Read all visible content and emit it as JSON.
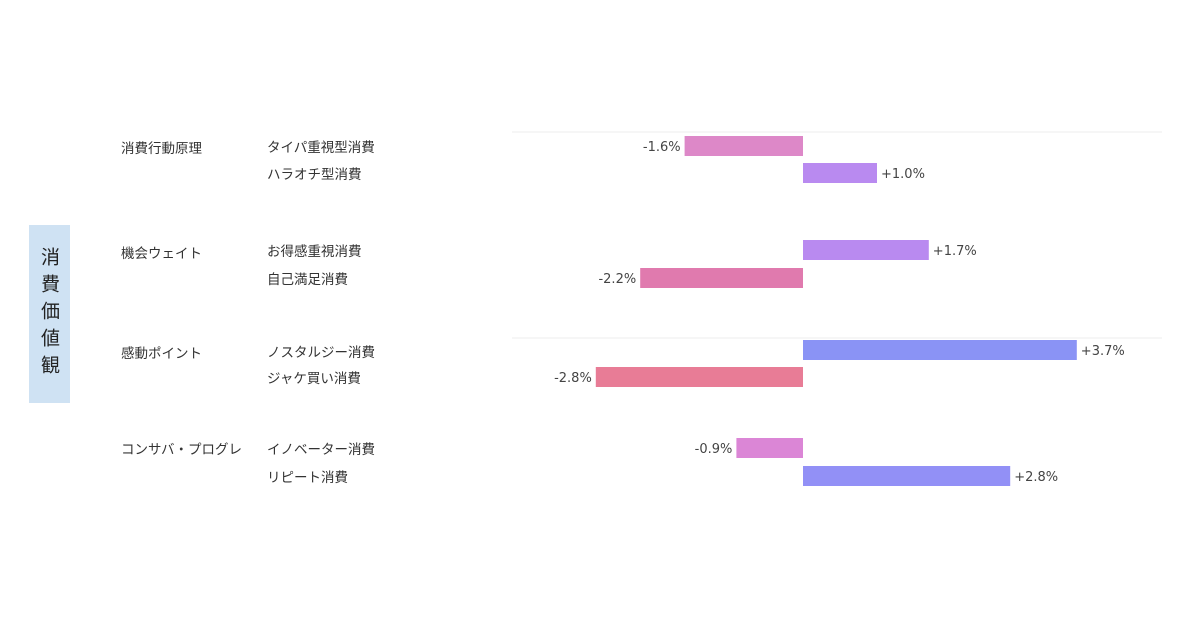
{
  "side_label": "消費価値観",
  "chart_data": {
    "type": "bar",
    "orientation": "horizontal",
    "groups": [
      {
        "label": "消費行動原理",
        "items": [
          {
            "label": "タイパ重視型消費",
            "value": -1.6,
            "display": "-1.6%",
            "color": "#dd88c8"
          },
          {
            "label": "ハラオチ型消費",
            "value": 1.0,
            "display": "+1.0%",
            "color": "#b98af0"
          }
        ]
      },
      {
        "label": "機会ウェイト",
        "items": [
          {
            "label": "お得感重視消費",
            "value": 1.7,
            "display": "+1.7%",
            "color": "#b98af0"
          },
          {
            "label": "自己満足消費",
            "value": -2.2,
            "display": "-2.2%",
            "color": "#e07aae"
          }
        ]
      },
      {
        "label": "感動ポイント",
        "items": [
          {
            "label": "ノスタルジー消費",
            "value": 3.7,
            "display": "+3.7%",
            "color": "#8a93f5"
          },
          {
            "label": "ジャケ買い消費",
            "value": -2.8,
            "display": "-2.8%",
            "color": "#e87c96"
          }
        ]
      },
      {
        "label": "コンサバ・プログレ",
        "items": [
          {
            "label": "イノベーター消費",
            "value": -0.9,
            "display": "-0.9%",
            "color": "#db86d6"
          },
          {
            "label": "リピート消費",
            "value": 2.8,
            "display": "+2.8%",
            "color": "#9290f6"
          }
        ]
      }
    ]
  }
}
